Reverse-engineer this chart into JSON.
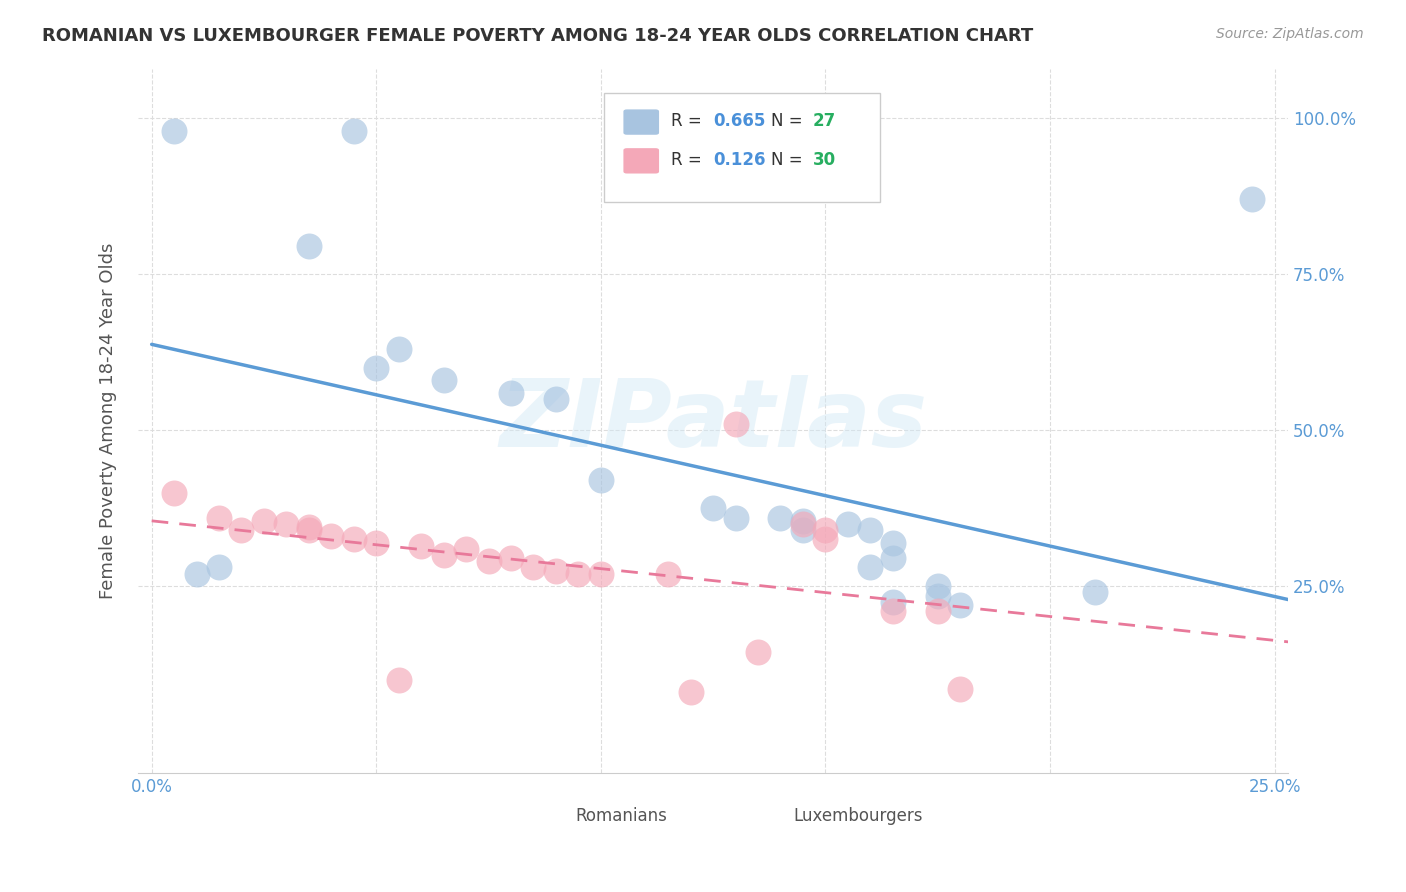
{
  "title": "ROMANIAN VS LUXEMBOURGER FEMALE POVERTY AMONG 18-24 YEAR OLDS CORRELATION CHART",
  "source": "Source: ZipAtlas.com",
  "ylabel": "Female Poverty Among 18-24 Year Olds",
  "romanian_color": "#a8c4e0",
  "luxembourger_color": "#f4a8b8",
  "romanian_line_color": "#5b9bd5",
  "luxembourger_line_color": "#e8799a",
  "legend_R_color": "#4a90d9",
  "legend_N_color": "#27ae60",
  "watermark": "ZIPatlas",
  "background_color": "#ffffff",
  "grid_color": "#dddddd",
  "romanians_scatter": [
    [
      0.5,
      98.0
    ],
    [
      4.5,
      98.0
    ],
    [
      3.5,
      79.5
    ],
    [
      5.5,
      63.0
    ],
    [
      5.0,
      60.0
    ],
    [
      6.5,
      58.0
    ],
    [
      8.0,
      56.0
    ],
    [
      9.0,
      55.0
    ],
    [
      10.0,
      42.0
    ],
    [
      12.5,
      37.5
    ],
    [
      13.0,
      36.0
    ],
    [
      14.0,
      36.0
    ],
    [
      14.5,
      35.5
    ],
    [
      15.5,
      35.0
    ],
    [
      14.5,
      34.0
    ],
    [
      16.0,
      34.0
    ],
    [
      16.5,
      32.0
    ],
    [
      16.5,
      29.5
    ],
    [
      16.0,
      28.0
    ],
    [
      1.5,
      28.0
    ],
    [
      1.0,
      27.0
    ],
    [
      17.5,
      25.0
    ],
    [
      17.5,
      23.5
    ],
    [
      16.5,
      22.5
    ],
    [
      18.0,
      22.0
    ],
    [
      21.0,
      24.0
    ],
    [
      24.5,
      87.0
    ]
  ],
  "luxembourgers_scatter": [
    [
      0.5,
      40.0
    ],
    [
      1.5,
      36.0
    ],
    [
      2.0,
      34.0
    ],
    [
      2.5,
      35.5
    ],
    [
      3.0,
      35.0
    ],
    [
      3.5,
      34.5
    ],
    [
      3.5,
      34.0
    ],
    [
      4.0,
      33.0
    ],
    [
      4.5,
      32.5
    ],
    [
      5.0,
      32.0
    ],
    [
      6.0,
      31.5
    ],
    [
      6.5,
      30.0
    ],
    [
      7.0,
      31.0
    ],
    [
      7.5,
      29.0
    ],
    [
      8.0,
      29.5
    ],
    [
      8.5,
      28.0
    ],
    [
      9.0,
      27.5
    ],
    [
      9.5,
      27.0
    ],
    [
      10.0,
      27.0
    ],
    [
      11.5,
      27.0
    ],
    [
      13.0,
      51.0
    ],
    [
      14.5,
      35.0
    ],
    [
      15.0,
      34.0
    ],
    [
      15.0,
      32.5
    ],
    [
      16.5,
      21.0
    ],
    [
      17.5,
      21.0
    ],
    [
      18.0,
      8.5
    ],
    [
      12.0,
      8.0
    ],
    [
      5.5,
      10.0
    ],
    [
      13.5,
      14.5
    ]
  ],
  "xlim": [
    -0.3,
    25.3
  ],
  "ylim": [
    -5,
    108
  ],
  "xticks": [
    0,
    5,
    10,
    15,
    20,
    25
  ],
  "xticklabels": [
    "0.0%",
    "",
    "",
    "",
    "",
    "25.0%"
  ],
  "yticks": [
    25,
    50,
    75,
    100
  ],
  "yticklabels": [
    "25.0%",
    "50.0%",
    "75.0%",
    "100.0%"
  ]
}
